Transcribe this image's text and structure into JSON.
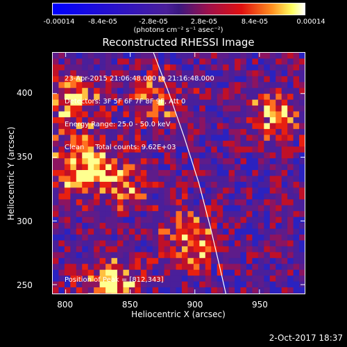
{
  "colorbar": {
    "tick_labels": [
      "-0.00014",
      "-8.4e-05",
      "-2.8e-05",
      "2.8e-05",
      "8.4e-05",
      "0.00014"
    ],
    "tick_values": [
      -0.00014,
      -8.4e-05,
      -2.8e-05,
      2.8e-05,
      8.4e-05,
      0.00014
    ],
    "unit_label": "(photons cm⁻² s⁻¹ asec⁻²)",
    "min": -0.00014,
    "max": 0.00014
  },
  "title": "Reconstructed RHESSI Image",
  "info_lines": [
    "23-Apr-2015 21:06:48.000 to 21:16:48.000",
    "Detectors: 3F 5F 6F 7F 8F 9F, Att 0",
    "Energy Range: 25.0 - 50.0 keV",
    "Clean     Total counts: 9.62E+03"
  ],
  "peak_label": "Position of Peak = [812,343]",
  "timestamp": "2-Oct-2017 18:37",
  "chart_data": {
    "type": "heatmap",
    "title": "Reconstructed RHESSI Image",
    "xlabel": "Heliocentric X (arcsec)",
    "ylabel": "Heliocentric Y (arcsec)",
    "xlim": [
      790,
      985
    ],
    "ylim": [
      243,
      432
    ],
    "x_ticks": [
      800,
      850,
      900,
      950
    ],
    "y_ticks": [
      250,
      300,
      350,
      400
    ],
    "colormap": "RHESSI diverging: blue (negative) - purple (zero) - red/yellow/white (positive)",
    "colors": {
      "neg": "#0000ff",
      "zero": "#4a1f9a",
      "mid": "#e01010",
      "pos": "#ffff80",
      "max": "#ffffff"
    },
    "limb_curve": {
      "x": [
        868,
        880,
        892,
        903,
        912,
        919,
        924
      ],
      "y": [
        432,
        400,
        365,
        330,
        295,
        265,
        243
      ]
    },
    "bright_regions": [
      {
        "x": 812,
        "y": 343,
        "level": 1.0
      },
      {
        "x": 805,
        "y": 395,
        "level": 0.75
      },
      {
        "x": 835,
        "y": 250,
        "level": 0.9
      },
      {
        "x": 895,
        "y": 285,
        "level": 0.8
      },
      {
        "x": 960,
        "y": 380,
        "level": 0.7
      },
      {
        "x": 870,
        "y": 395,
        "level": 0.55
      },
      {
        "x": 848,
        "y": 330,
        "level": 0.5
      }
    ],
    "peak": [
      812,
      343
    ]
  }
}
